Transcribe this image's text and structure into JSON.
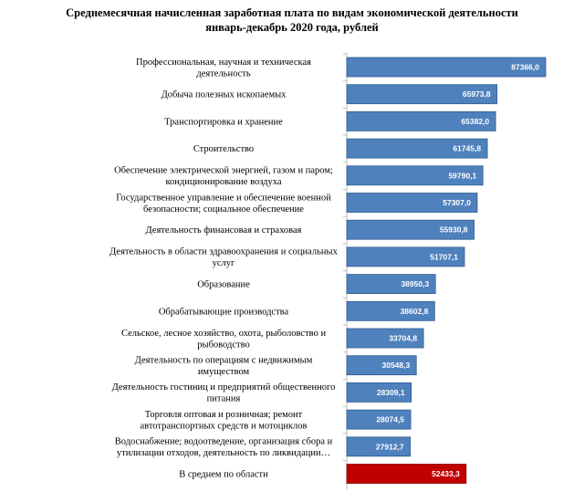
{
  "chart_data": {
    "type": "bar",
    "orientation": "horizontal",
    "title": "Среднемесячная начисленная заработная плата по видам экономической деятельности",
    "subtitle": "январь-декабрь 2020 года, рублей",
    "categories": [
      [
        "Профессиональная, научная и техническая",
        "деятельность"
      ],
      [
        "Добыча полезных ископаемых"
      ],
      [
        "Транспортировка и хранение"
      ],
      [
        "Строительство"
      ],
      [
        "Обеспечение электрической энергией, газом и паром;",
        "кондиционирование воздуха"
      ],
      [
        "Государственное управление и обеспечение военной",
        "безопасности; социальное обеспечение"
      ],
      [
        "Деятельность финансовая и страховая"
      ],
      [
        "Деятельность в области здравоохранения и социальных",
        "услуг"
      ],
      [
        "Образование"
      ],
      [
        "Обрабатывающие производства"
      ],
      [
        "Сельское, лесное хозяйство, охота, рыболовство и",
        "рыбоводство"
      ],
      [
        "Деятельность по операциям с недвижимым",
        "имуществом"
      ],
      [
        "Деятельность гостиниц и предприятий общественного",
        "питания"
      ],
      [
        "Торговля оптовая и розничная; ремонт",
        "автотранспортных средств и мотоциклов"
      ],
      [
        "Водоснабжение; водоотведение, организация сбора и",
        "утилизации отходов, деятельность по ликвидации…"
      ],
      [
        "В среднем по области"
      ]
    ],
    "values": [
      87366.0,
      65973.8,
      65382.0,
      61745.8,
      59790.1,
      57307.0,
      55930.8,
      51707.1,
      38950.3,
      38602.8,
      33704.8,
      30548.3,
      28309.1,
      28074.5,
      27912.7,
      52433.3
    ],
    "value_labels": [
      "87366,0",
      "65973,8",
      "65382,0",
      "61745,8",
      "59790,1",
      "57307,0",
      "55930,8",
      "51707,1",
      "38950,3",
      "38602,8",
      "33704,8",
      "30548,3",
      "28309,1",
      "28074,5",
      "27912,7",
      "52433,3"
    ],
    "colors": {
      "bar": "#4f81bd",
      "bar_border": "#2e5b8f",
      "highlight": "#c00000",
      "highlight_border": "#8b0000"
    },
    "highlight_index": 15,
    "xlim": [
      0,
      87366.0
    ]
  }
}
